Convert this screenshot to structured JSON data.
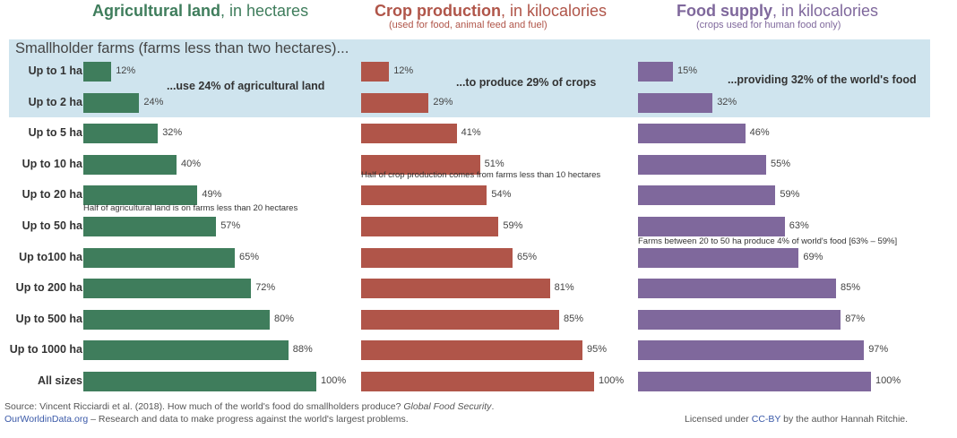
{
  "colors": {
    "agri": "#3f7d5c",
    "crop": "#b05549",
    "food": "#7f689c",
    "highlight": "#cfe4ee"
  },
  "panels": [
    {
      "title_bold": "Agricultural land",
      "title_rest": ", in hectares",
      "subtitle": ""
    },
    {
      "title_bold": "Crop production",
      "title_rest": ", in kilocalories",
      "subtitle": "(used for food, animal feed and fuel)"
    },
    {
      "title_bold": "Food supply",
      "title_rest": ", in kilocalories",
      "subtitle": "(crops used for human food only)"
    }
  ],
  "highlight_title": "Smallholder farms (farms less than two hectares)...",
  "callouts": [
    "...use 24% of agricultural land",
    "...to produce 29% of crops",
    "...providing 32% of the world's food"
  ],
  "notes": [
    "Half of agricultural land is on farms less than 20 hectares",
    "Half of crop production comes from farms less than 10 hectares",
    "Farms between 20 to 50 ha  produce 4% of world's food [63% – 59%]"
  ],
  "chart_data": {
    "type": "bar",
    "orientation": "horizontal",
    "categories": [
      "Up to 1 ha",
      "Up to 2 ha",
      "Up to 5 ha",
      "Up to 10 ha",
      "Up to 20 ha",
      "Up to 50 ha",
      "Up to100 ha",
      "Up to 200 ha",
      "Up to 500 ha",
      "Up to 1000 ha",
      "All sizes"
    ],
    "series": [
      {
        "name": "Agricultural land",
        "values": [
          12,
          24,
          32,
          40,
          49,
          57,
          65,
          72,
          80,
          88,
          100
        ]
      },
      {
        "name": "Crop production",
        "values": [
          12,
          29,
          41,
          51,
          54,
          59,
          65,
          81,
          85,
          95,
          100
        ]
      },
      {
        "name": "Food supply",
        "values": [
          15,
          32,
          46,
          55,
          59,
          63,
          69,
          85,
          87,
          97,
          100
        ]
      }
    ],
    "value_suffix": "%",
    "xlim": [
      0,
      100
    ]
  },
  "footer": {
    "source_text": "Source: Vincent Ricciardi et al. (2018). How much of the world's food do smallholders produce? ",
    "source_journal": "Global Food Security",
    "source_end": ".",
    "owid_link": "OurWorldinData.org",
    "owid_text": " – Research and data to make progress against the world's largest problems.",
    "license_pre": "Licensed under ",
    "license_link": "CC-BY",
    "license_post": " by the author Hannah Ritchie."
  }
}
